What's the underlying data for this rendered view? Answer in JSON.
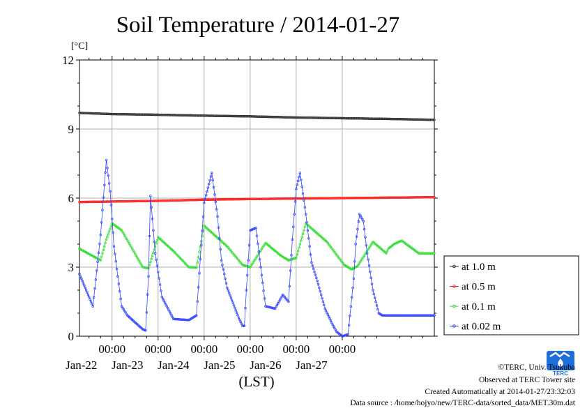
{
  "title": "Soil Temperature / 2014-01-27",
  "unit_label": "[°C]",
  "xlabel": "(LST)",
  "credits": {
    "copyright": "©TERC, Univ. Tsukuba",
    "observed": "Observed at TERC Tower site",
    "created": "Created Automatically at 2014-01-27/23:32:03",
    "source": "Data source : /home/hojyo/new/TERC-data/sorted_data/MET.30m.dat"
  },
  "logo_text": "TERC",
  "colors": {
    "at_1_0m": "#333333",
    "at_0_5m": "#ff2020",
    "at_0_1m": "#33dd33",
    "at_0_02m": "#3344ff",
    "grid": "#999999"
  },
  "chart_data": {
    "type": "line",
    "title": "Soil Temperature / 2014-01-27",
    "ylabel": "[°C]",
    "xlabel": "(LST)",
    "x_unit": "hours since 2014-01-21 00:00 LST",
    "xlim": [
      -17,
      168
    ],
    "ylim": [
      0,
      12
    ],
    "yticks": [
      0,
      3,
      6,
      9,
      12
    ],
    "xticks": [
      {
        "x": 0,
        "time": "00:00",
        "date": "Jan-22"
      },
      {
        "x": 24,
        "time": "00:00",
        "date": "Jan-23"
      },
      {
        "x": 48,
        "time": "00:00",
        "date": "Jan-24"
      },
      {
        "x": 72,
        "time": "00:00",
        "date": "Jan-25"
      },
      {
        "x": 96,
        "time": "00:00",
        "date": "Jan-26"
      },
      {
        "x": 120,
        "time": "00:00",
        "date": "Jan-27"
      }
    ],
    "grid": true,
    "legend_position": "right",
    "series": [
      {
        "name": "at 1.0 m",
        "color": "#333333",
        "x": [
          -17,
          0,
          24,
          48,
          72,
          96,
          120,
          144,
          168
        ],
        "y": [
          9.7,
          9.65,
          9.62,
          9.58,
          9.55,
          9.5,
          9.47,
          9.44,
          9.4
        ]
      },
      {
        "name": "at 0.5 m",
        "color": "#ff2020",
        "x": [
          -17,
          0,
          24,
          48,
          72,
          96,
          120,
          144,
          168
        ],
        "y": [
          5.83,
          5.85,
          5.88,
          5.93,
          5.96,
          5.98,
          6.0,
          6.02,
          6.04
        ]
      },
      {
        "name": "at 0.1 m",
        "color": "#33dd33",
        "x": [
          -17,
          -6,
          -3,
          0,
          5,
          16,
          19,
          24,
          32,
          40,
          44,
          48,
          60,
          68,
          72,
          80,
          88,
          92,
          96,
          101,
          112,
          121,
          125,
          128,
          136,
          143,
          144,
          147,
          151,
          155,
          160,
          163,
          166,
          168
        ],
        "y": [
          3.8,
          3.3,
          4.2,
          4.9,
          4.6,
          3.0,
          2.95,
          4.3,
          3.7,
          3.0,
          2.98,
          4.8,
          3.9,
          3.1,
          3.0,
          4.05,
          3.5,
          3.3,
          3.4,
          4.9,
          4.1,
          3.1,
          2.9,
          3.05,
          4.1,
          3.6,
          3.8,
          4.0,
          4.15,
          3.9,
          3.6,
          3.6,
          3.6,
          3.6
        ]
      },
      {
        "name": "at 0.02 m",
        "color": "#3344ff",
        "x": [
          -17,
          -10,
          -6,
          -3,
          -1,
          1,
          5,
          8,
          12,
          16,
          17.5,
          19,
          20,
          22.5,
          26,
          32,
          40,
          44,
          48,
          52,
          55,
          57,
          60,
          66,
          68,
          69,
          70,
          72,
          75,
          80,
          85,
          89,
          92,
          94,
          96,
          98,
          101,
          104,
          107,
          111,
          115,
          117,
          120,
          123,
          126,
          127,
          129,
          131,
          133,
          136,
          139,
          140,
          141,
          143,
          145,
          148,
          150,
          152,
          154,
          156,
          158,
          160,
          162,
          164,
          166,
          168
        ],
        "y": [
          2.7,
          1.3,
          4.4,
          7.65,
          6.3,
          3.9,
          1.3,
          0.9,
          0.6,
          0.3,
          0.25,
          2.6,
          6.1,
          3.6,
          1.7,
          0.75,
          0.7,
          0.9,
          5.8,
          7.1,
          5.2,
          3.3,
          2.1,
          0.8,
          0.45,
          0.45,
          2.0,
          4.6,
          4.7,
          1.3,
          1.2,
          1.8,
          1.5,
          4.2,
          6.4,
          7.1,
          5.3,
          3.2,
          2.4,
          1.2,
          0.5,
          0.2,
          0.0,
          0.08,
          2.5,
          4.0,
          5.3,
          5.0,
          3.6,
          2.0,
          1.0,
          0.95,
          0.9,
          0.9,
          0.9,
          0.9,
          0.9,
          0.9,
          0.9,
          0.9,
          0.9,
          0.9,
          0.9,
          0.9,
          0.9,
          0.9
        ]
      }
    ]
  }
}
